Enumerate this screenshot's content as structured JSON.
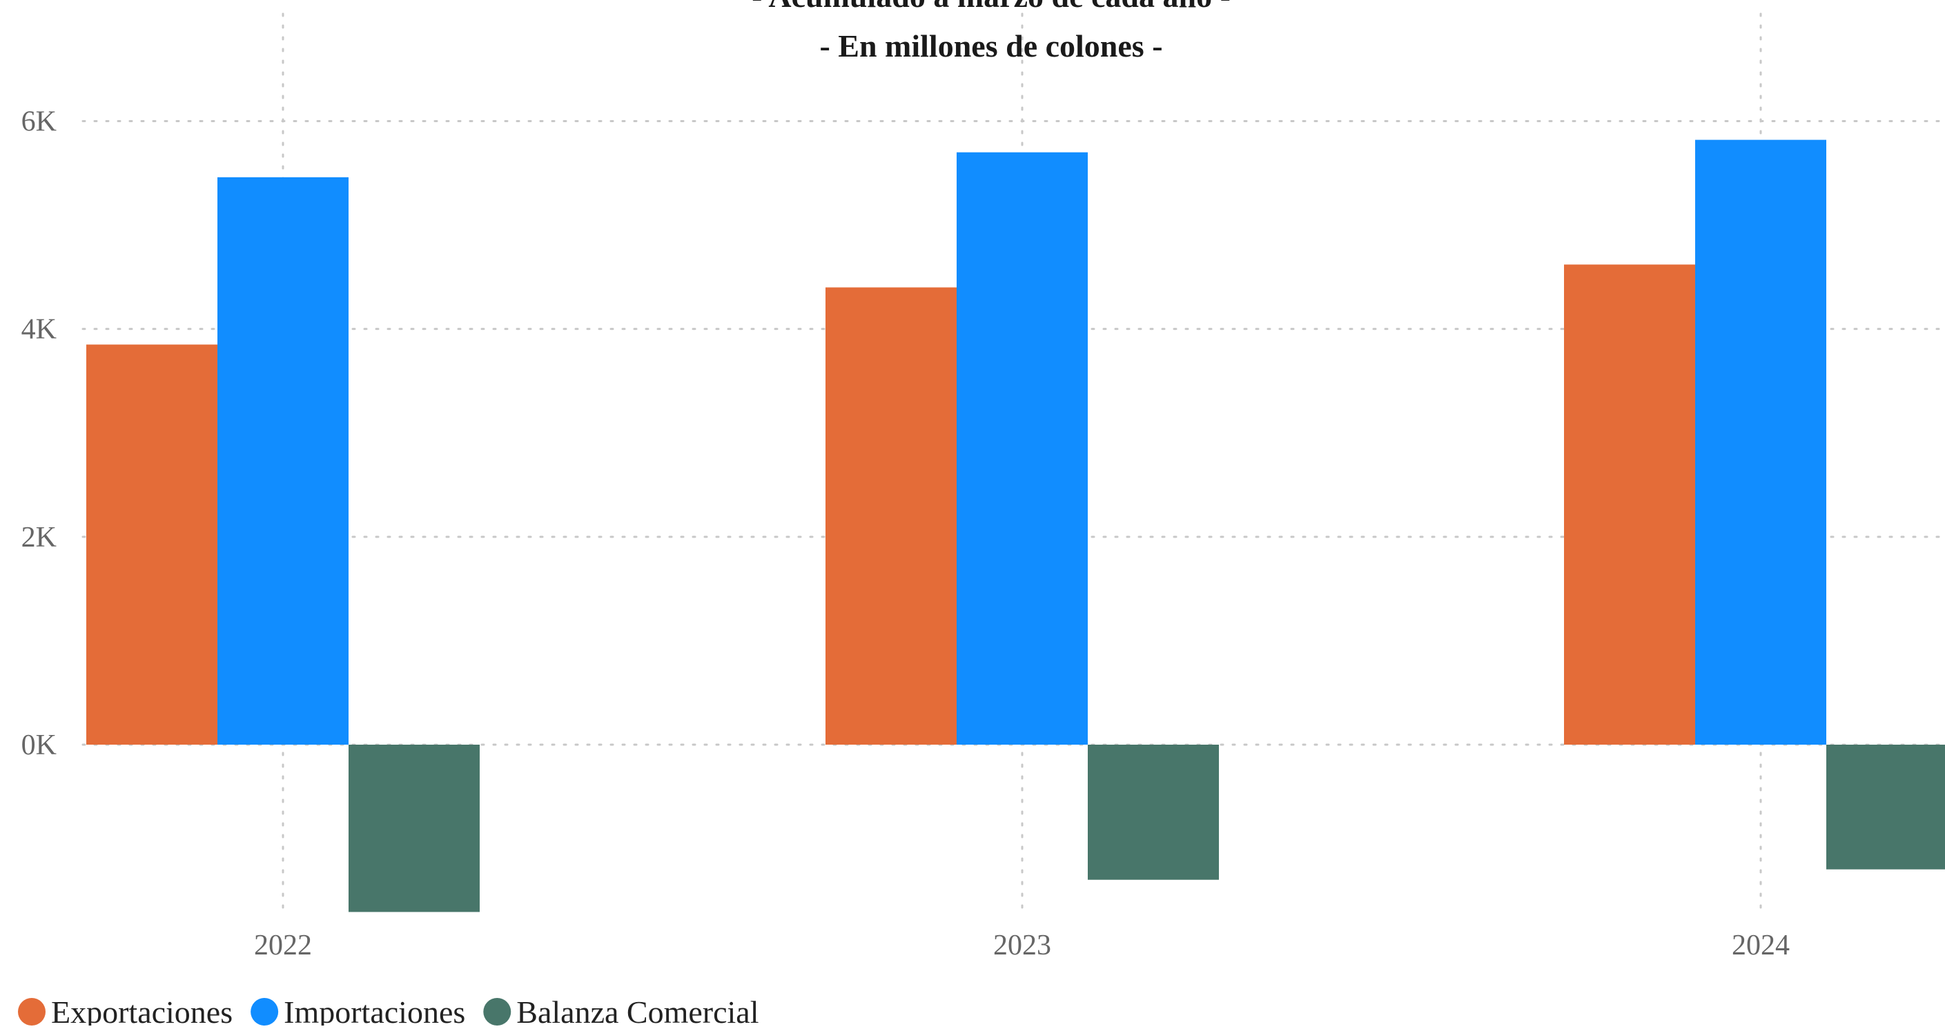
{
  "chart_data": {
    "type": "bar",
    "subtitles": [
      "- Acumulado a marzo de cada año -",
      "- En millones de colones -"
    ],
    "categories": [
      "2022",
      "2023",
      "2024"
    ],
    "series": [
      {
        "name": "Exportaciones",
        "values": [
          3850,
          4400,
          4620
        ],
        "color": "#E46C38"
      },
      {
        "name": "Importaciones",
        "values": [
          5460,
          5700,
          5820
        ],
        "color": "#118DFF"
      },
      {
        "name": "Balanza Comercial",
        "values": [
          -1610,
          -1300,
          -1200
        ],
        "color": "#48766A"
      }
    ],
    "y_ticks": [
      "0K",
      "2K",
      "4K",
      "6K"
    ],
    "y_tick_values": [
      0,
      2000,
      4000,
      6000
    ],
    "ylim": [
      -1800,
      6000
    ],
    "grid": true,
    "legend_position": "bottom-left"
  }
}
